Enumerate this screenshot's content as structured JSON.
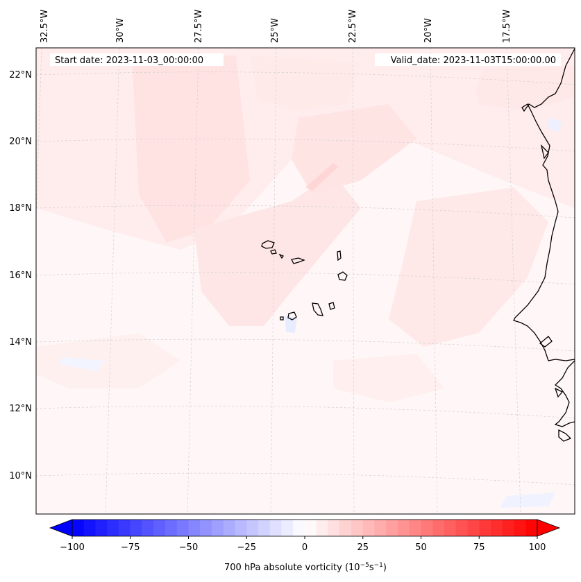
{
  "header": {
    "start_date": "Start date: 2023-11-03_00:00:00",
    "valid_date": "Valid_date: 2023-11-03T15:00:00.00"
  },
  "longitude_labels": [
    "32.5°W",
    "30°W",
    "27.5°W",
    "25°W",
    "22.5°W",
    "20°W",
    "17.5°W"
  ],
  "latitude_labels": [
    "22°N",
    "20°N",
    "18°N",
    "16°N",
    "14°N",
    "12°N",
    "10°N"
  ],
  "colorbar": {
    "ticks": [
      "−100",
      "−75",
      "−50",
      "−25",
      "0",
      "25",
      "50",
      "75",
      "100"
    ],
    "label": "700 hPa absolute vorticity (10",
    "label_exp1": "−5",
    "label_mid": "s",
    "label_exp2": "−1",
    "label_end": ")",
    "min": -100,
    "max": 100,
    "levels": 40,
    "colors": {
      "low": "#0000ff",
      "mid": "#ffffff",
      "high": "#ff0000"
    }
  },
  "colors": {
    "background_field": "#fff6f6",
    "coast": "#000000",
    "grid": "#c8c8c8"
  }
}
